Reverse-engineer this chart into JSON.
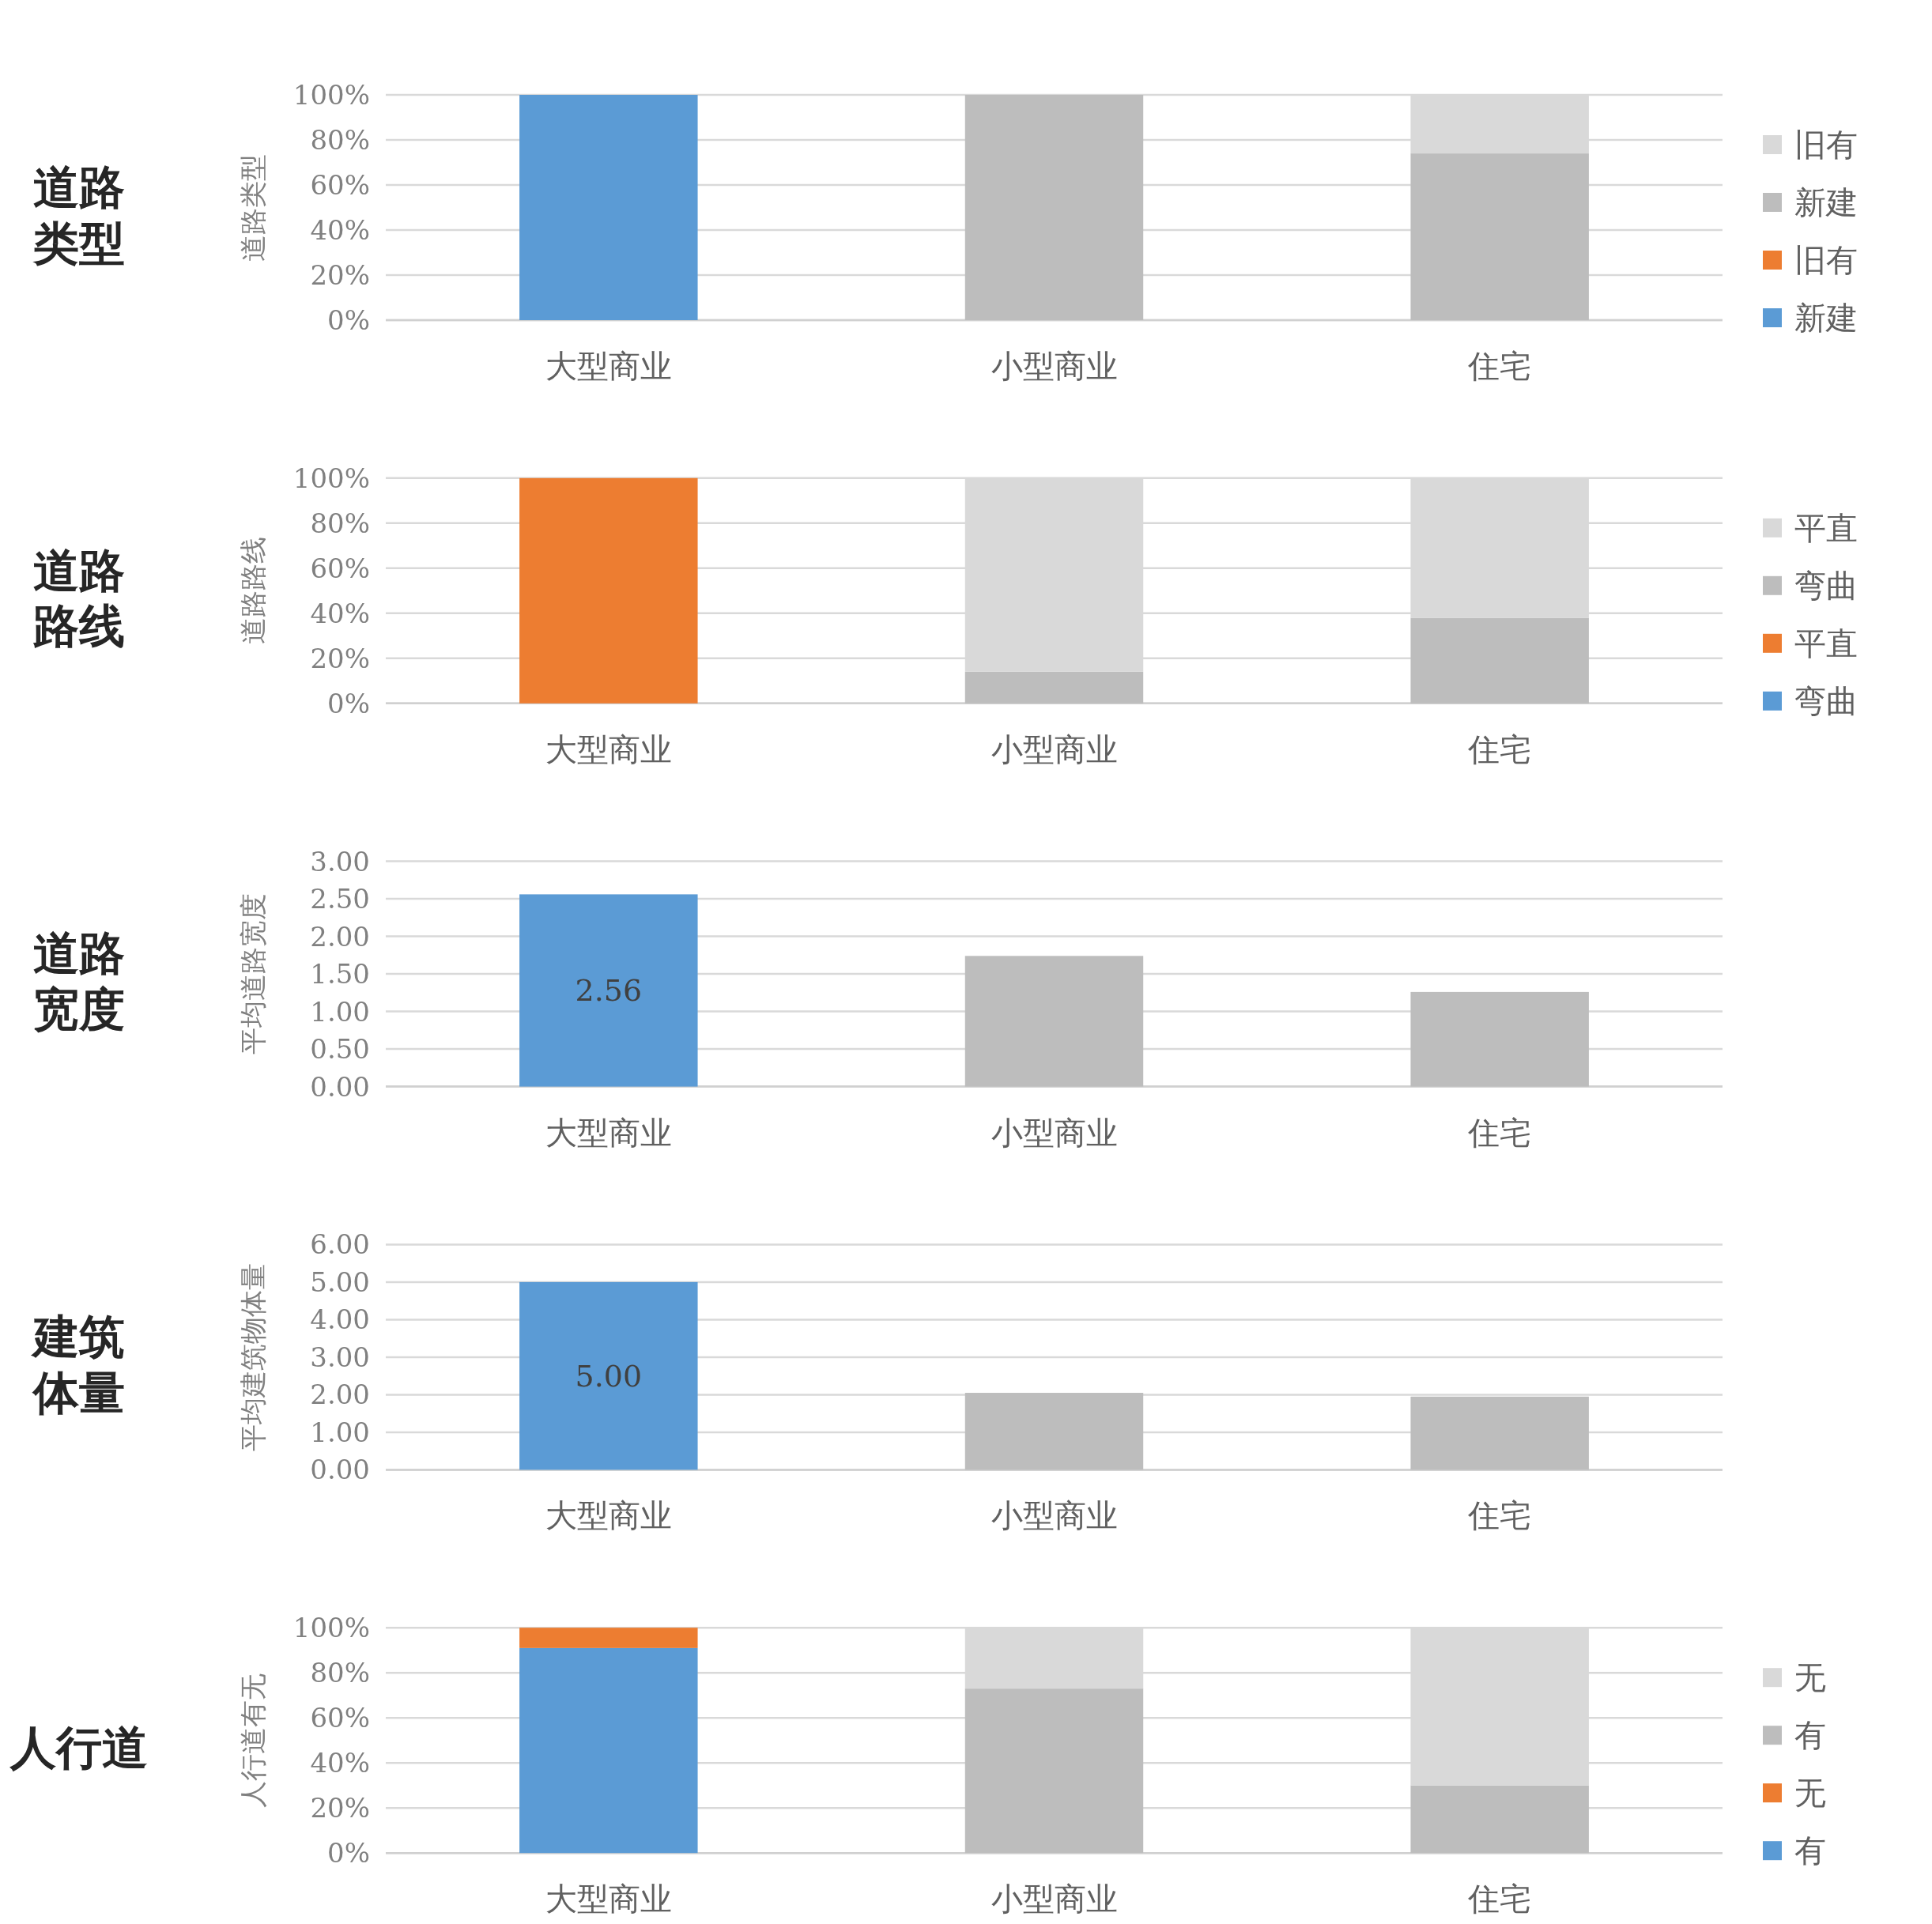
{
  "chart_data": [
    {
      "type": "bar",
      "title": "道路类型",
      "ylabel": "道路类型",
      "categories": [
        "大型商业",
        "小型商业",
        "住宅"
      ],
      "stacked": true,
      "series": [
        {
          "name": "新建",
          "color": "#5b9bd5",
          "values": [
            100,
            null,
            null
          ]
        },
        {
          "name": "旧有",
          "color": "#ed7d31",
          "values": [
            null,
            null,
            null
          ]
        },
        {
          "name": "新建",
          "color": "#bdbdbd",
          "values": [
            null,
            100,
            74
          ]
        },
        {
          "name": "旧有",
          "color": "#d9d9d9",
          "values": [
            null,
            null,
            26
          ]
        }
      ],
      "ylim": [
        0,
        100
      ],
      "yticks": [
        {
          "value": 0,
          "label": "0%"
        },
        {
          "value": 20,
          "label": "20%"
        },
        {
          "value": 40,
          "label": "40%"
        },
        {
          "value": 60,
          "label": "60%"
        },
        {
          "value": 80,
          "label": "80%"
        },
        {
          "value": 100,
          "label": "100%"
        }
      ],
      "grid": "y",
      "legend": "right"
    },
    {
      "type": "bar",
      "title": "道路路线",
      "ylabel": "道路路线",
      "categories": [
        "大型商业",
        "小型商业",
        "住宅"
      ],
      "stacked": true,
      "series": [
        {
          "name": "弯曲",
          "color": "#5b9bd5",
          "values": [
            null,
            null,
            null
          ]
        },
        {
          "name": "平直",
          "color": "#ed7d31",
          "values": [
            100,
            null,
            null
          ]
        },
        {
          "name": "弯曲",
          "color": "#bdbdbd",
          "values": [
            null,
            14,
            38
          ]
        },
        {
          "name": "平直",
          "color": "#d9d9d9",
          "values": [
            null,
            86,
            62
          ]
        }
      ],
      "ylim": [
        0,
        100
      ],
      "yticks": [
        {
          "value": 0,
          "label": "0%"
        },
        {
          "value": 20,
          "label": "20%"
        },
        {
          "value": 40,
          "label": "40%"
        },
        {
          "value": 60,
          "label": "60%"
        },
        {
          "value": 80,
          "label": "80%"
        },
        {
          "value": 100,
          "label": "100%"
        }
      ],
      "grid": "y",
      "legend": "right"
    },
    {
      "type": "bar",
      "title": "道路宽度",
      "ylabel": "平均道路宽度",
      "categories": [
        "大型商业",
        "小型商业",
        "住宅"
      ],
      "values": [
        2.56,
        1.74,
        1.26
      ],
      "colors": [
        "#5b9bd5",
        "#bdbdbd",
        "#bdbdbd"
      ],
      "value_labels": [
        "2.56",
        null,
        null
      ],
      "ylim": [
        0,
        3
      ],
      "yticks": [
        {
          "value": 0,
          "label": "0.00"
        },
        {
          "value": 0.5,
          "label": "0.50"
        },
        {
          "value": 1,
          "label": "1.00"
        },
        {
          "value": 1.5,
          "label": "1.50"
        },
        {
          "value": 2,
          "label": "2.00"
        },
        {
          "value": 2.5,
          "label": "2.50"
        },
        {
          "value": 3,
          "label": "3.00"
        }
      ],
      "grid": "y"
    },
    {
      "type": "bar",
      "title": "建筑体量",
      "ylabel": "平均建筑物体量",
      "categories": [
        "大型商业",
        "小型商业",
        "住宅"
      ],
      "values": [
        5.0,
        2.05,
        1.95
      ],
      "colors": [
        "#5b9bd5",
        "#bdbdbd",
        "#bdbdbd"
      ],
      "value_labels": [
        "5.00",
        null,
        null
      ],
      "ylim": [
        0,
        6
      ],
      "yticks": [
        {
          "value": 0,
          "label": "0.00"
        },
        {
          "value": 1,
          "label": "1.00"
        },
        {
          "value": 2,
          "label": "2.00"
        },
        {
          "value": 3,
          "label": "3.00"
        },
        {
          "value": 4,
          "label": "4.00"
        },
        {
          "value": 5,
          "label": "5.00"
        },
        {
          "value": 6,
          "label": "6.00"
        }
      ],
      "grid": "y"
    },
    {
      "type": "bar",
      "title": "人行道",
      "ylabel": "人行道有无",
      "categories": [
        "大型商业",
        "小型商业",
        "住宅"
      ],
      "stacked": true,
      "series": [
        {
          "name": "有",
          "color": "#5b9bd5",
          "values": [
            91,
            null,
            null
          ]
        },
        {
          "name": "无",
          "color": "#ed7d31",
          "values": [
            9,
            null,
            null
          ]
        },
        {
          "name": "有",
          "color": "#bdbdbd",
          "values": [
            null,
            73,
            30
          ]
        },
        {
          "name": "无",
          "color": "#d9d9d9",
          "values": [
            null,
            27,
            70
          ]
        }
      ],
      "ylim": [
        0,
        100
      ],
      "yticks": [
        {
          "value": 0,
          "label": "0%"
        },
        {
          "value": 20,
          "label": "20%"
        },
        {
          "value": 40,
          "label": "40%"
        },
        {
          "value": 60,
          "label": "60%"
        },
        {
          "value": 80,
          "label": "80%"
        },
        {
          "value": 100,
          "label": "100%"
        }
      ],
      "grid": "y",
      "legend": "right"
    }
  ]
}
